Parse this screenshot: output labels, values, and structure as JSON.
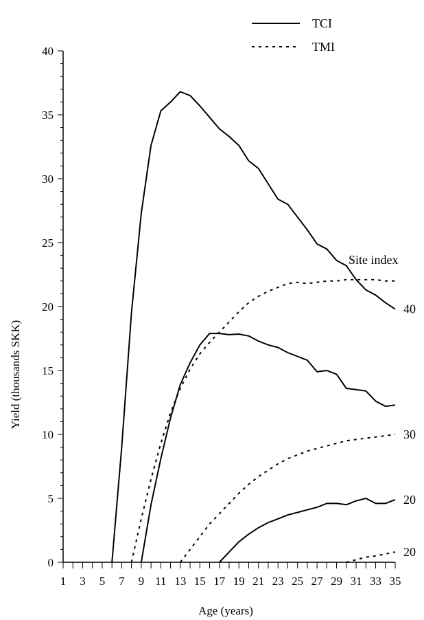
{
  "chart_data": {
    "type": "line",
    "xlabel": "Age (years)",
    "ylabel": "Yield (thousands SKK)",
    "xlim": [
      1,
      35
    ],
    "ylim": [
      0,
      40
    ],
    "x_tick_labels": [
      "1",
      "3",
      "5",
      "7",
      "9",
      "11",
      "13",
      "15",
      "17",
      "19",
      "21",
      "23",
      "25",
      "27",
      "29",
      "31",
      "33",
      "35"
    ],
    "y_tick_labels": [
      "0",
      "5",
      "10",
      "15",
      "20",
      "25",
      "30",
      "35",
      "40"
    ],
    "legend": [
      {
        "label": "TCI",
        "style": "solid"
      },
      {
        "label": "TMI",
        "style": "dotted"
      }
    ],
    "legend_position": "top",
    "annotation_title": "Site index",
    "series": [
      {
        "group": "TCI",
        "style": "solid",
        "end_label": "40",
        "points": [
          [
            6,
            0
          ],
          [
            7,
            9
          ],
          [
            8,
            19.5
          ],
          [
            9,
            27.3
          ],
          [
            10,
            32.6
          ],
          [
            11,
            35.3
          ],
          [
            12,
            36
          ],
          [
            13,
            36.8
          ],
          [
            14,
            36.5
          ],
          [
            15,
            35.7
          ],
          [
            16,
            34.8
          ],
          [
            17,
            33.9
          ],
          [
            18,
            33.3
          ],
          [
            19,
            32.6
          ],
          [
            20,
            31.4
          ],
          [
            21,
            30.8
          ],
          [
            22,
            29.6
          ],
          [
            23,
            28.4
          ],
          [
            24,
            28
          ],
          [
            25,
            27
          ],
          [
            26,
            26
          ],
          [
            27,
            24.9
          ],
          [
            28,
            24.5
          ],
          [
            29,
            23.6
          ],
          [
            30,
            23.2
          ],
          [
            31,
            22.1
          ],
          [
            32,
            21.3
          ],
          [
            33,
            20.9
          ],
          [
            34,
            20.3
          ],
          [
            35,
            19.8
          ]
        ]
      },
      {
        "group": "TCI",
        "style": "solid",
        "end_label": "",
        "points": [
          [
            9,
            0
          ],
          [
            10,
            4.5
          ],
          [
            11,
            8.1
          ],
          [
            12,
            11.3
          ],
          [
            13,
            13.9
          ],
          [
            14,
            15.6
          ],
          [
            15,
            17
          ],
          [
            16,
            17.9
          ],
          [
            17,
            17.9
          ],
          [
            18,
            17.8
          ],
          [
            19,
            17.85
          ],
          [
            20,
            17.7
          ],
          [
            21,
            17.3
          ],
          [
            22,
            17
          ],
          [
            23,
            16.8
          ],
          [
            24,
            16.4
          ],
          [
            25,
            16.1
          ],
          [
            26,
            15.8
          ],
          [
            27,
            14.9
          ],
          [
            28,
            15
          ],
          [
            29,
            14.7
          ],
          [
            30,
            13.6
          ],
          [
            31,
            13.5
          ],
          [
            32,
            13.4
          ],
          [
            33,
            12.6
          ],
          [
            34,
            12.2
          ],
          [
            35,
            12.3
          ]
        ]
      },
      {
        "group": "TCI",
        "style": "solid",
        "end_label": "20",
        "points": [
          [
            17,
            0
          ],
          [
            18,
            0.8
          ],
          [
            19,
            1.6
          ],
          [
            20,
            2.2
          ],
          [
            21,
            2.7
          ],
          [
            22,
            3.1
          ],
          [
            23,
            3.4
          ],
          [
            24,
            3.7
          ],
          [
            25,
            3.9
          ],
          [
            26,
            4.1
          ],
          [
            27,
            4.3
          ],
          [
            28,
            4.6
          ],
          [
            29,
            4.6
          ],
          [
            30,
            4.5
          ],
          [
            31,
            4.8
          ],
          [
            32,
            5
          ],
          [
            33,
            4.6
          ],
          [
            34,
            4.6
          ],
          [
            35,
            4.9
          ]
        ]
      },
      {
        "group": "TMI",
        "style": "dotted",
        "end_label": "",
        "points": [
          [
            8,
            0
          ],
          [
            9,
            3.4
          ],
          [
            10,
            6.5
          ],
          [
            11,
            9.3
          ],
          [
            12,
            11.7
          ],
          [
            13,
            13.6
          ],
          [
            14,
            15.1
          ],
          [
            15,
            16.3
          ],
          [
            16,
            17.2
          ],
          [
            17,
            18
          ],
          [
            18,
            18.8
          ],
          [
            19,
            19.6
          ],
          [
            20,
            20.3
          ],
          [
            21,
            20.8
          ],
          [
            22,
            21.2
          ],
          [
            23,
            21.5
          ],
          [
            24,
            21.8
          ],
          [
            25,
            21.9
          ],
          [
            26,
            21.8
          ],
          [
            27,
            21.9
          ],
          [
            28,
            22
          ],
          [
            29,
            22
          ],
          [
            30,
            22.1
          ],
          [
            31,
            22.1
          ],
          [
            32,
            22.1
          ],
          [
            33,
            22.1
          ],
          [
            34,
            22
          ],
          [
            35,
            22
          ]
        ]
      },
      {
        "group": "TMI",
        "style": "dotted",
        "end_label": "30",
        "points": [
          [
            13,
            0
          ],
          [
            14,
            1
          ],
          [
            15,
            2
          ],
          [
            16,
            3
          ],
          [
            17,
            3.8
          ],
          [
            18,
            4.6
          ],
          [
            19,
            5.4
          ],
          [
            20,
            6.1
          ],
          [
            21,
            6.7
          ],
          [
            22,
            7.2
          ],
          [
            23,
            7.7
          ],
          [
            24,
            8.1
          ],
          [
            25,
            8.4
          ],
          [
            26,
            8.7
          ],
          [
            27,
            8.9
          ],
          [
            28,
            9.1
          ],
          [
            29,
            9.3
          ],
          [
            30,
            9.5
          ],
          [
            31,
            9.6
          ],
          [
            32,
            9.7
          ],
          [
            33,
            9.8
          ],
          [
            34,
            9.9
          ],
          [
            35,
            10
          ]
        ]
      },
      {
        "group": "TMI",
        "style": "dotted",
        "end_label": "20",
        "points": [
          [
            30,
            0
          ],
          [
            31,
            0.2
          ],
          [
            32,
            0.4
          ],
          [
            33,
            0.5
          ],
          [
            34,
            0.65
          ],
          [
            35,
            0.8
          ]
        ]
      }
    ]
  }
}
